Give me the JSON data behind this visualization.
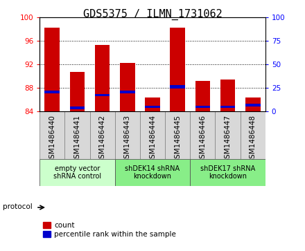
{
  "title": "GDS5375 / ILMN_1731062",
  "samples": [
    "GSM1486440",
    "GSM1486441",
    "GSM1486442",
    "GSM1486443",
    "GSM1486444",
    "GSM1486445",
    "GSM1486446",
    "GSM1486447",
    "GSM1486448"
  ],
  "count_values": [
    98.3,
    90.7,
    95.3,
    92.2,
    86.3,
    98.3,
    89.2,
    89.4,
    86.3
  ],
  "percentile_values": [
    87.0,
    84.3,
    86.5,
    87.0,
    84.5,
    87.8,
    84.5,
    84.5,
    84.8
  ],
  "blue_bar_heights": [
    0.55,
    0.45,
    0.45,
    0.55,
    0.45,
    0.6,
    0.45,
    0.45,
    0.5
  ],
  "ylim": [
    84,
    100
  ],
  "yticks_left": [
    84,
    88,
    92,
    96,
    100
  ],
  "yticks_right": [
    0,
    25,
    50,
    75,
    100
  ],
  "groups": [
    {
      "label": "empty vector\nshRNA control",
      "start": 0,
      "end": 3,
      "color": "#ccffcc"
    },
    {
      "label": "shDEK14 shRNA\nknockdown",
      "start": 3,
      "end": 6,
      "color": "#88ee88"
    },
    {
      "label": "shDEK17 shRNA\nknockdown",
      "start": 6,
      "end": 9,
      "color": "#88ee88"
    }
  ],
  "bar_color_red": "#cc0000",
  "bar_color_blue": "#0000cc",
  "bar_width": 0.6,
  "protocol_label": "protocol",
  "legend_count": "count",
  "legend_percentile": "percentile rank within the sample",
  "bg_color": "#ffffff",
  "title_fontsize": 11,
  "tick_fontsize": 7.5,
  "label_fontsize": 7.5
}
